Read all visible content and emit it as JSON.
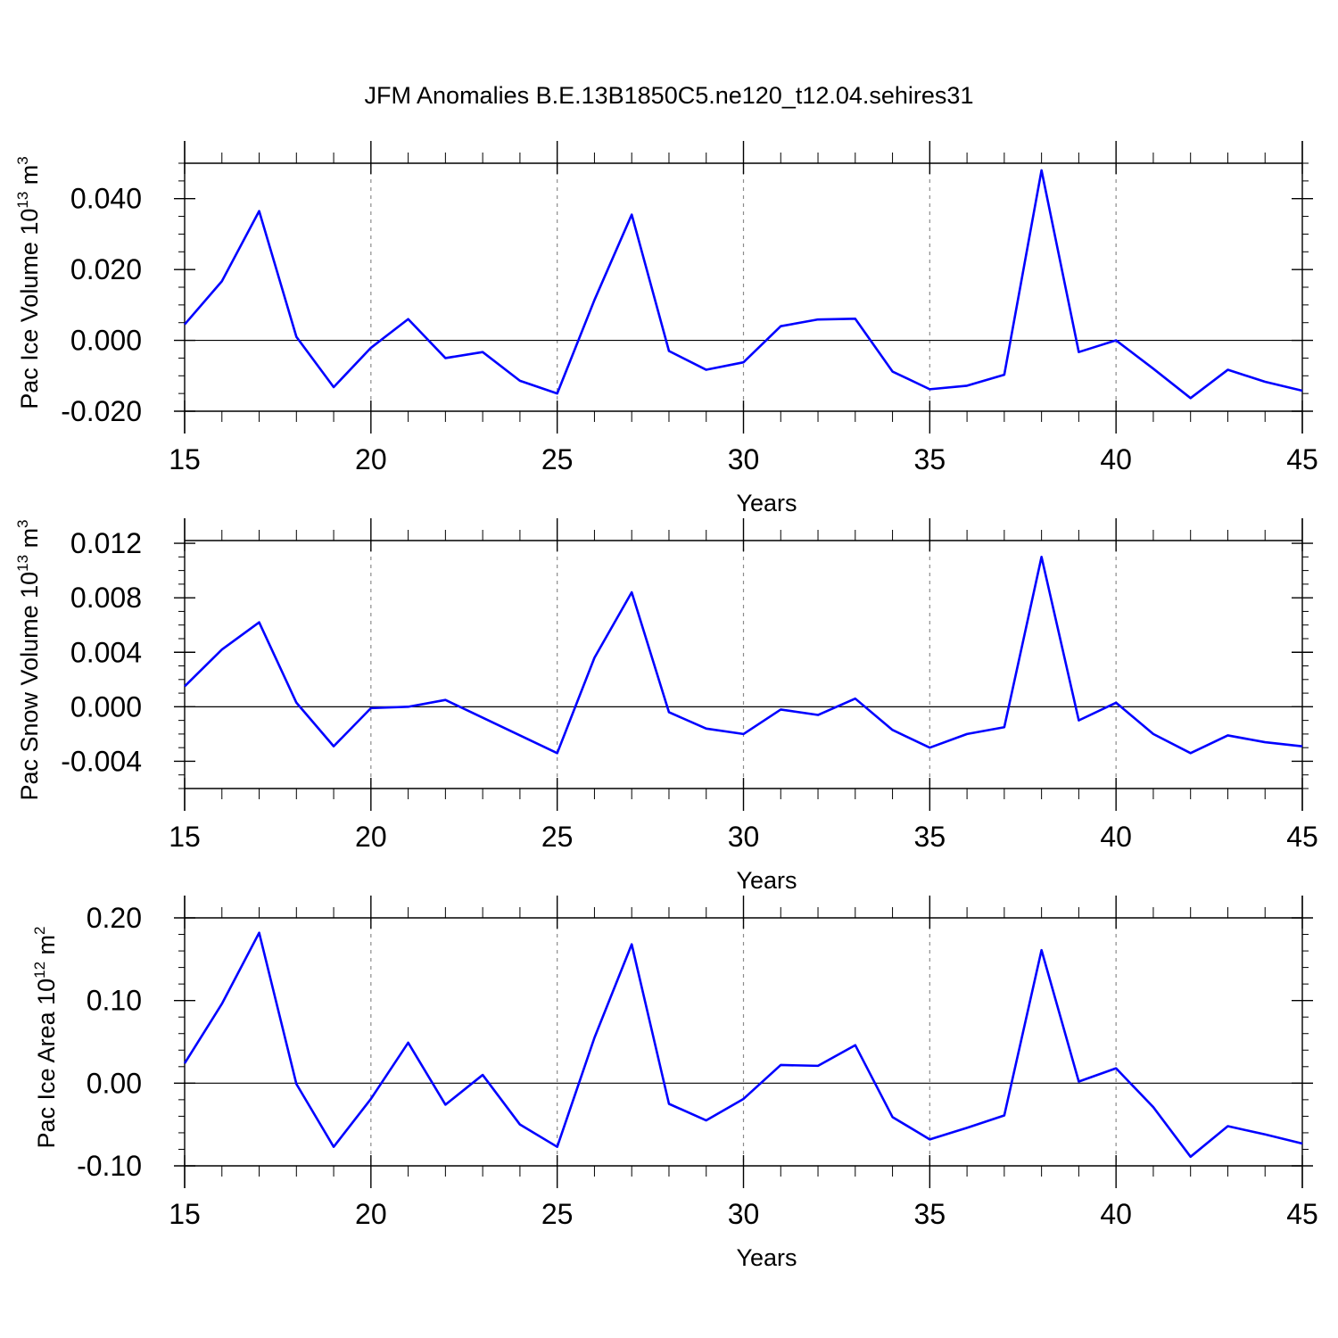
{
  "title": "JFM Anomalies B.E.13B1850C5.ne120_t12.04.sehires31",
  "chart_data": [
    {
      "type": "line",
      "ylabel": "Pac Ice Volume 10",
      "ylabel_exp": "13",
      "ylabel_unit": " m",
      "ylabel_unit_exp": "3",
      "xlabel": "Years",
      "xlim": [
        15,
        45
      ],
      "ylim": [
        -0.02,
        0.05
      ],
      "xticks": [
        "15",
        "20",
        "25",
        "30",
        "35",
        "40",
        "45"
      ],
      "yticks": [
        -0.02,
        0.0,
        0.02,
        0.04
      ],
      "ytick_labels": [
        "-0.020",
        "0.000",
        "0.020",
        "0.040"
      ],
      "yminor": 0.005,
      "zero_line": true,
      "grid": "dashed vertical at major x ticks",
      "x": [
        15,
        16,
        17,
        18,
        19,
        20,
        21,
        22,
        23,
        24,
        25,
        26,
        27,
        28,
        29,
        30,
        31,
        32,
        33,
        34,
        35,
        36,
        37,
        38,
        39,
        40,
        41,
        42,
        43,
        44,
        45
      ],
      "series": [
        {
          "color": "#0000ff",
          "values": [
            0.0045,
            0.0167,
            0.0365,
            0.001,
            -0.0132,
            -0.0021,
            0.006,
            -0.005,
            -0.0033,
            -0.0114,
            -0.015,
            0.0114,
            0.0355,
            -0.003,
            -0.0083,
            -0.0062,
            0.004,
            0.0059,
            0.0061,
            -0.0088,
            -0.0138,
            -0.0128,
            -0.0097,
            0.048,
            -0.0033,
            0.0,
            -0.008,
            -0.0163,
            -0.0083,
            -0.0117,
            -0.0142
          ]
        }
      ]
    },
    {
      "type": "line",
      "ylabel": "Pac Snow Volume 10",
      "ylabel_exp": "13",
      "ylabel_unit": " m",
      "ylabel_unit_exp": "3",
      "xlabel": "Years",
      "xlim": [
        15,
        45
      ],
      "ylim": [
        -0.006,
        0.0122
      ],
      "xticks": [
        "15",
        "20",
        "25",
        "30",
        "35",
        "40",
        "45"
      ],
      "yticks": [
        -0.004,
        0.0,
        0.004,
        0.008,
        0.012
      ],
      "ytick_labels": [
        "-0.004",
        "0.000",
        "0.004",
        "0.008",
        "0.012"
      ],
      "yminor": 0.001,
      "zero_line": true,
      "grid": "dashed vertical at major x ticks",
      "x": [
        15,
        16,
        17,
        18,
        19,
        20,
        21,
        22,
        23,
        24,
        25,
        26,
        27,
        28,
        29,
        30,
        31,
        32,
        33,
        34,
        35,
        36,
        37,
        38,
        39,
        40,
        41,
        42,
        43,
        44,
        45
      ],
      "series": [
        {
          "color": "#0000ff",
          "values": [
            0.0015,
            0.0042,
            0.0062,
            0.0003,
            -0.0029,
            -0.0001,
            0.0,
            0.0005,
            -0.0008,
            -0.0021,
            -0.0034,
            0.0036,
            0.0084,
            -0.0004,
            -0.0016,
            -0.002,
            -0.0002,
            -0.0006,
            0.0006,
            -0.0017,
            -0.003,
            -0.002,
            -0.0015,
            0.011,
            -0.001,
            0.0003,
            -0.002,
            -0.0034,
            -0.0021,
            -0.0026,
            -0.0029
          ]
        }
      ]
    },
    {
      "type": "line",
      "ylabel": "Pac Ice Area 10",
      "ylabel_exp": "12",
      "ylabel_unit": " m",
      "ylabel_unit_exp": "2",
      "xlabel": "Years",
      "xlim": [
        15,
        45
      ],
      "ylim": [
        -0.1,
        0.2
      ],
      "xticks": [
        "15",
        "20",
        "25",
        "30",
        "35",
        "40",
        "45"
      ],
      "yticks": [
        -0.1,
        0.0,
        0.1,
        0.2
      ],
      "ytick_labels": [
        "-0.10",
        "0.00",
        "0.10",
        "0.20"
      ],
      "yminor": 0.02,
      "zero_line": true,
      "grid": "dashed vertical at major x ticks",
      "x": [
        15,
        16,
        17,
        18,
        19,
        20,
        21,
        22,
        23,
        24,
        25,
        26,
        27,
        28,
        29,
        30,
        31,
        32,
        33,
        34,
        35,
        36,
        37,
        38,
        39,
        40,
        41,
        42,
        43,
        44,
        45
      ],
      "series": [
        {
          "color": "#0000ff",
          "values": [
            0.024,
            0.096,
            0.182,
            -0.001,
            -0.077,
            -0.019,
            0.049,
            -0.026,
            0.01,
            -0.05,
            -0.077,
            0.055,
            0.168,
            -0.025,
            -0.045,
            -0.019,
            0.022,
            0.021,
            0.046,
            -0.041,
            -0.068,
            -0.054,
            -0.039,
            0.161,
            0.002,
            0.018,
            -0.029,
            -0.089,
            -0.052,
            -0.062,
            -0.073
          ]
        }
      ]
    }
  ]
}
